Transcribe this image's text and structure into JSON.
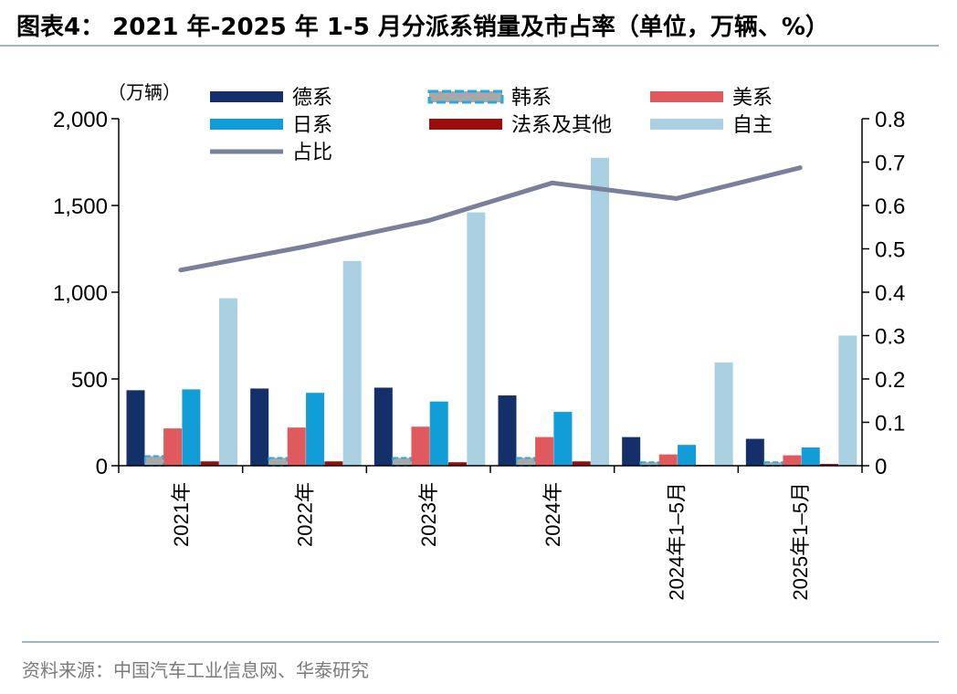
{
  "title": "图表4：  2021 年-2025 年 1-5 月分派系销量及市占率（单位，万辆、%）",
  "source": "资料来源：中国汽车工业信息网、华泰研究",
  "colors": {
    "德系": "#13306b",
    "韩系": "#29a8e0",
    "美系": "#e05a5d",
    "日系": "#109dd8",
    "法系及其他": "#9b0d0d",
    "自主": "#a9d1e2",
    "占比": "#7a7f9a",
    "rule": "#9fb4c7"
  },
  "chart_data": {
    "type": "bar",
    "unit_label": "（万辆）",
    "categories": [
      "2021年",
      "2022年",
      "2023年",
      "2024年",
      "2024年1–5月",
      "2025年1–5月"
    ],
    "y_left": {
      "min": 0,
      "max": 2000,
      "ticks": [
        "0",
        "500",
        "1,000",
        "1,500",
        "2,000"
      ]
    },
    "y_right": {
      "min": 0,
      "max": 0.8,
      "ticks": [
        "0",
        "0.1",
        "0.2",
        "0.3",
        "0.4",
        "0.5",
        "0.6",
        "0.7",
        "0.8"
      ]
    },
    "series": [
      {
        "name": "德系",
        "type": "bar",
        "values": [
          435,
          445,
          450,
          405,
          165,
          155
        ]
      },
      {
        "name": "韩系",
        "type": "bar",
        "values": [
          55,
          45,
          45,
          45,
          20,
          20
        ]
      },
      {
        "name": "美系",
        "type": "bar",
        "values": [
          215,
          220,
          225,
          165,
          65,
          60
        ]
      },
      {
        "name": "日系",
        "type": "bar",
        "values": [
          440,
          420,
          370,
          310,
          120,
          105
        ]
      },
      {
        "name": "法系及其他",
        "type": "bar",
        "values": [
          25,
          25,
          20,
          25,
          5,
          10
        ]
      },
      {
        "name": "自主",
        "type": "bar",
        "values": [
          965,
          1180,
          1460,
          1775,
          595,
          750
        ]
      },
      {
        "name": "占比",
        "type": "line",
        "axis": "right",
        "values": [
          0.451,
          0.505,
          0.565,
          0.652,
          0.616,
          0.687
        ]
      }
    ],
    "legend": [
      {
        "name": "德系",
        "style": "bar"
      },
      {
        "name": "韩系",
        "style": "dashed"
      },
      {
        "name": "美系",
        "style": "bar"
      },
      {
        "name": "日系",
        "style": "bar"
      },
      {
        "name": "法系及其他",
        "style": "bar"
      },
      {
        "name": "自主",
        "style": "bar"
      },
      {
        "name": "占比",
        "style": "line"
      }
    ],
    "grid": false,
    "legend_position": "top"
  }
}
